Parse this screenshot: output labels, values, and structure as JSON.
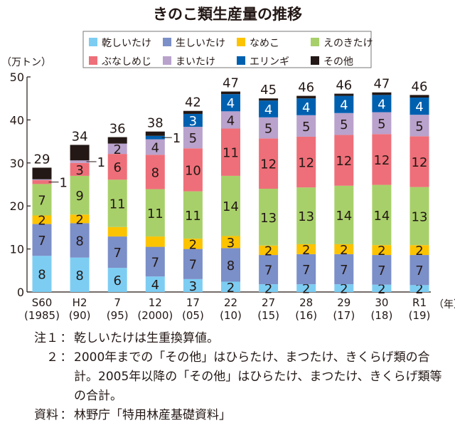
{
  "chart_data": {
    "type": "bar",
    "stacked": true,
    "title": "きのこ類生産量の推移",
    "ylabel": "（万トン）",
    "xlabel": "（年）",
    "ylim": [
      0,
      50
    ],
    "yticks": [
      0,
      10,
      20,
      30,
      40,
      50
    ],
    "grid": false,
    "legend_position": "top",
    "categories": [
      {
        "line1": "S60",
        "line2": "(1985)"
      },
      {
        "line1": "H2",
        "line2": "(90)"
      },
      {
        "line1": "7",
        "line2": "(95)"
      },
      {
        "line1": "12",
        "line2": "(2000)"
      },
      {
        "line1": "17",
        "line2": "(05)"
      },
      {
        "line1": "22",
        "line2": "(10)"
      },
      {
        "line1": "27",
        "line2": "(15)"
      },
      {
        "line1": "28",
        "line2": "(16)"
      },
      {
        "line1": "29",
        "line2": "(17)"
      },
      {
        "line1": "30",
        "line2": "(18)"
      },
      {
        "line1": "R1",
        "line2": "(19)"
      }
    ],
    "totals": [
      "29",
      "34",
      "36",
      "38",
      "42",
      "47",
      "45",
      "46",
      "46",
      "47",
      "46"
    ],
    "series": [
      {
        "name": "乾しいたけ",
        "color": "#7dcdf3",
        "text_color": "#231815",
        "values": [
          8.4,
          8.0,
          5.6,
          3.6,
          3.0,
          2.4,
          1.8,
          1.8,
          1.8,
          1.7,
          1.6
        ],
        "labels": [
          "8",
          "8",
          "6",
          "4",
          "3",
          "2",
          "2",
          "2",
          "2",
          "2",
          "2"
        ]
      },
      {
        "name": "生しいたけ",
        "color": "#7b8fc8",
        "text_color": "#231815",
        "values": [
          7.4,
          8.0,
          7.3,
          6.9,
          7.0,
          7.8,
          6.8,
          7.0,
          7.0,
          6.9,
          7.0
        ],
        "labels": [
          "7",
          "8",
          "7",
          "7",
          "7",
          "8",
          "7",
          "7",
          "7",
          "7",
          "7"
        ]
      },
      {
        "name": "なめこ",
        "color": "#fcc300",
        "text_color": "#231815",
        "values": [
          2.0,
          2.0,
          2.2,
          2.4,
          2.4,
          2.8,
          2.2,
          2.3,
          2.3,
          2.3,
          2.3
        ],
        "labels": [
          "2",
          "2",
          "",
          "",
          "2",
          "3",
          "2",
          "2",
          "2",
          "2",
          "2"
        ]
      },
      {
        "name": "えのきたけ",
        "color": "#a8d06a",
        "text_color": "#231815",
        "values": [
          7.3,
          9.0,
          11.0,
          11.0,
          11.0,
          14.0,
          13.2,
          13.2,
          13.6,
          14.0,
          13.5
        ],
        "labels": [
          "7",
          "9",
          "11",
          "11",
          "11",
          "14",
          "13",
          "13",
          "14",
          "14",
          "13"
        ]
      },
      {
        "name": "ぶなしめじ",
        "color": "#ee6f79",
        "text_color": "#231815",
        "values": [
          0.9,
          3.0,
          6.0,
          8.0,
          10.0,
          11.0,
          11.7,
          11.8,
          11.8,
          11.8,
          11.8
        ],
        "labels": [
          "1*",
          "3",
          "6",
          "8",
          "10",
          "11",
          "12",
          "12",
          "12",
          "12",
          "12"
        ]
      },
      {
        "name": "まいたけ",
        "color": "#b9a2cc",
        "text_color": "#231815",
        "values": [
          0.2,
          0.6,
          2.4,
          3.6,
          5.0,
          4.0,
          4.9,
          5.0,
          5.1,
          5.1,
          5.0
        ],
        "labels": [
          "",
          "1*",
          "2",
          "4",
          "5",
          "4",
          "5",
          "5",
          "5",
          "5",
          "5"
        ]
      },
      {
        "name": "エリンギ",
        "color": "#0060b0",
        "text_color": "#ffffff",
        "values": [
          0,
          0,
          0,
          0.8,
          3.0,
          4.0,
          3.9,
          3.9,
          4.0,
          4.0,
          4.0
        ],
        "labels": [
          "",
          "",
          "",
          "1*",
          "3",
          "4",
          "4",
          "4",
          "4",
          "4",
          "4"
        ]
      },
      {
        "name": "その他",
        "color": "#231815",
        "text_color": "#ffffff",
        "values": [
          2.7,
          3.6,
          1.5,
          1.0,
          0.7,
          0.6,
          0.5,
          0.6,
          0.5,
          0.6,
          0.6
        ],
        "labels": [
          "",
          "",
          "",
          "",
          "",
          "",
          "",
          "",
          "",
          "",
          ""
        ]
      }
    ]
  },
  "notes": [
    {
      "key": "注１",
      "text": "乾しいたけは生重換算値。"
    },
    {
      "key": "２",
      "text": "2000年までの「その他」はひらたけ、まつたけ、きくらげ類の合計。2005年以降の「その他」はひらたけ、まつたけ、きくらげ類等の合計。"
    },
    {
      "key": "資料",
      "text": "林野庁「特用林産基礎資料」"
    }
  ],
  "note_separator": "："
}
